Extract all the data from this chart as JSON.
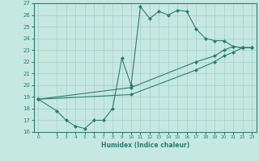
{
  "xlabel": "Humidex (Indice chaleur)",
  "line_color": "#2e7d6e",
  "bg_color": "#c5e8e0",
  "grid_color": "#a8cfc8",
  "xlim": [
    -0.5,
    23.5
  ],
  "ylim": [
    16,
    27
  ],
  "xticks": [
    0,
    2,
    3,
    4,
    5,
    6,
    7,
    8,
    9,
    10,
    11,
    12,
    13,
    14,
    15,
    16,
    17,
    18,
    19,
    20,
    21,
    22,
    23
  ],
  "yticks": [
    16,
    17,
    18,
    19,
    20,
    21,
    22,
    23,
    24,
    25,
    26,
    27
  ],
  "series": [
    {
      "x": [
        0,
        2,
        3,
        4,
        5,
        6,
        7,
        8,
        9,
        10,
        11,
        12,
        13,
        14,
        15,
        16,
        17,
        18,
        19,
        20,
        21,
        22,
        23
      ],
      "y": [
        18.8,
        17.8,
        17.0,
        16.5,
        16.3,
        17.0,
        17.0,
        18.0,
        22.3,
        20.0,
        26.7,
        25.7,
        26.3,
        26.0,
        26.4,
        26.3,
        24.8,
        24.0,
        23.8,
        23.8,
        23.3,
        23.2,
        23.2
      ]
    },
    {
      "x": [
        0,
        10,
        17,
        19,
        20,
        21,
        22,
        23
      ],
      "y": [
        18.8,
        19.8,
        22.0,
        22.5,
        23.0,
        23.3,
        23.2,
        23.2
      ]
    },
    {
      "x": [
        0,
        10,
        17,
        19,
        20,
        21,
        22,
        23
      ],
      "y": [
        18.8,
        19.2,
        21.3,
        22.0,
        22.5,
        22.8,
        23.2,
        23.2
      ]
    }
  ]
}
